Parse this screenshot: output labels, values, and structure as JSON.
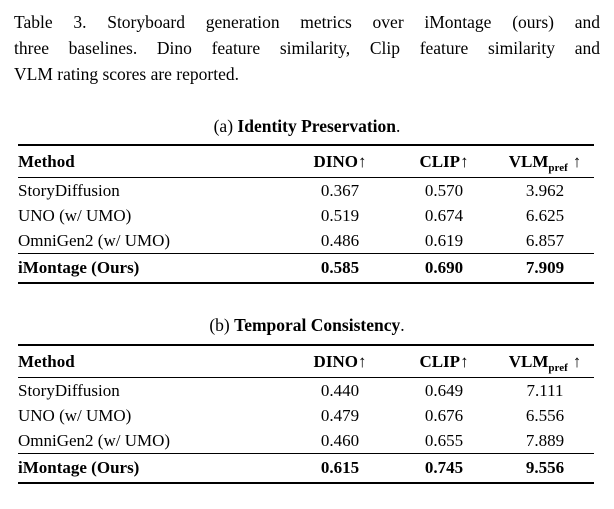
{
  "colors": {
    "text": "#000000",
    "background": "#ffffff",
    "rule": "#000000"
  },
  "caption": {
    "lines": [
      "Table 3.  Storyboard generation metrics over iMontage (ours) and",
      "three baselines.  Dino feature similarity, Clip feature similarity and",
      "VLM rating scores are reported."
    ]
  },
  "tables": [
    {
      "label": "(a)",
      "title": "Identity Preservation",
      "period": ".",
      "headers": {
        "method": "Method",
        "dino": "DINO",
        "clip": "CLIP",
        "vlm": "VLM",
        "vlm_sub": "pref",
        "arrow": "↑"
      },
      "rows": [
        {
          "method": "StoryDiffusion",
          "dino": "0.367",
          "clip": "0.570",
          "vlm": "3.962"
        },
        {
          "method": "UNO (w/ UMO)",
          "dino": "0.519",
          "clip": "0.674",
          "vlm": "6.625"
        },
        {
          "method": "OmniGen2 (w/ UMO)",
          "dino": "0.486",
          "clip": "0.619",
          "vlm": "6.857"
        }
      ],
      "highlight": {
        "method": "iMontage (Ours)",
        "dino": "0.585",
        "clip": "0.690",
        "vlm": "7.909"
      }
    },
    {
      "label": "(b)",
      "title": "Temporal Consistency",
      "period": ".",
      "headers": {
        "method": "Method",
        "dino": "DINO",
        "clip": "CLIP",
        "vlm": "VLM",
        "vlm_sub": "pref",
        "arrow": "↑"
      },
      "rows": [
        {
          "method": "StoryDiffusion",
          "dino": "0.440",
          "clip": "0.649",
          "vlm": "7.111"
        },
        {
          "method": "UNO (w/ UMO)",
          "dino": "0.479",
          "clip": "0.676",
          "vlm": "6.556"
        },
        {
          "method": "OmniGen2 (w/ UMO)",
          "dino": "0.460",
          "clip": "0.655",
          "vlm": "7.889"
        }
      ],
      "highlight": {
        "method": "iMontage (Ours)",
        "dino": "0.615",
        "clip": "0.745",
        "vlm": "9.556"
      }
    }
  ]
}
